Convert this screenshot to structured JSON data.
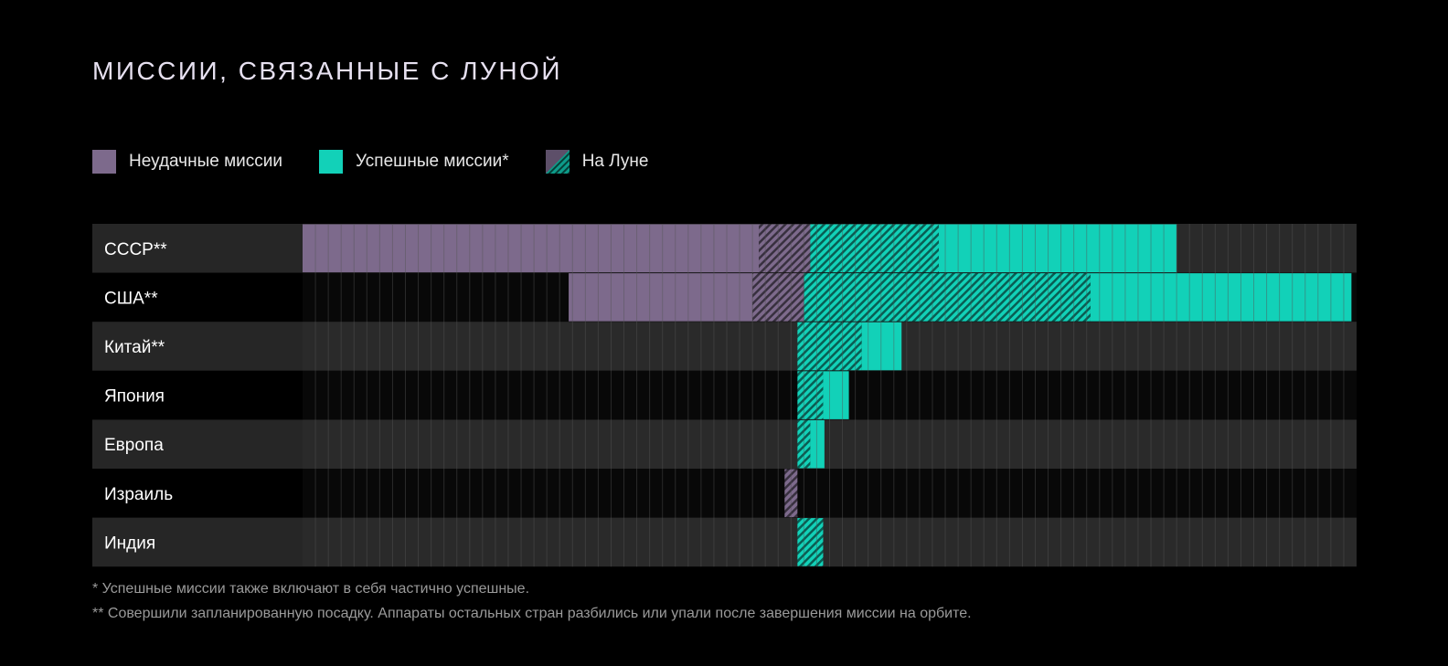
{
  "title": "МИССИИ, СВЯЗАННЫЕ С ЛУНОЙ",
  "colors": {
    "background": "#000000",
    "failed": "#7d6a8c",
    "success": "#12d1b8",
    "label_band_light": "#262626",
    "label_band_dark": "#000000",
    "grid_light": "#2a2a2a",
    "grid_dark": "#080808",
    "gridline": "#555555"
  },
  "legend": [
    {
      "label": "Неудачные миссии",
      "type": "failed"
    },
    {
      "label": "Успешные миссии*",
      "type": "success"
    },
    {
      "label": "На Луне",
      "type": "on_moon"
    }
  ],
  "chart_data": {
    "type": "bar",
    "layout": "horizontal-stacked",
    "unit_grid_columns": 82,
    "categories": [
      "СССР**",
      "США**",
      "Китай**",
      "Япония",
      "Европа",
      "Израиль",
      "Индия"
    ],
    "rows": [
      {
        "label": "СССР**",
        "failed_left": 35.5,
        "failed_on_moon": 4,
        "success_on_moon": 10,
        "success": 18.5
      },
      {
        "label": "США**",
        "failed_left": 14.3,
        "failed_on_moon": 4,
        "success_on_moon": 22.3,
        "success": 20.3
      },
      {
        "label": "Китай**",
        "failed_left": 0,
        "failed_on_moon": 0,
        "success_on_moon": 5,
        "success": 3.1
      },
      {
        "label": "Япония",
        "failed_left": 0,
        "failed_on_moon": 0,
        "success_on_moon": 2,
        "success": 2
      },
      {
        "label": "Европа",
        "failed_left": 0,
        "failed_on_moon": 0,
        "success_on_moon": 1,
        "success": 1.1
      },
      {
        "label": "Израиль",
        "failed_left": 0,
        "failed_on_moon": 1,
        "success_on_moon": 0,
        "success": 0
      },
      {
        "label": "Индия",
        "failed_left": 0,
        "failed_on_moon": 0,
        "success_on_moon": 2,
        "success": 0
      }
    ]
  },
  "footnotes": [
    "* Успешные миссии также включают в себя частично успешные.",
    "** Совершили запланированную посадку. Аппараты остальных стран разбились или упали после завершения миссии на орбите."
  ]
}
